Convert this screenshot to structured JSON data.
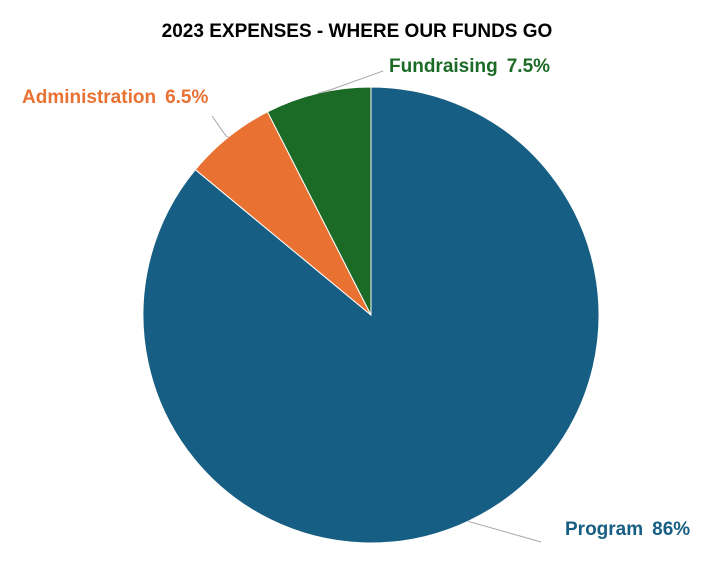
{
  "chart_data": {
    "type": "pie",
    "title": "2023 EXPENSES - WHERE OUR FUNDS GO",
    "categories": [
      "Program",
      "Administration",
      "Fundraising"
    ],
    "values": [
      86,
      6.5,
      7.5
    ],
    "value_labels": [
      "86%",
      "6.5%",
      "7.5%"
    ],
    "colors": [
      "#165e83",
      "#e97132",
      "#1b6b26"
    ],
    "start": "12 o'clock",
    "direction": "clockwise",
    "data_labels": "outside with leader lines, category name and percent",
    "legend": "none"
  }
}
